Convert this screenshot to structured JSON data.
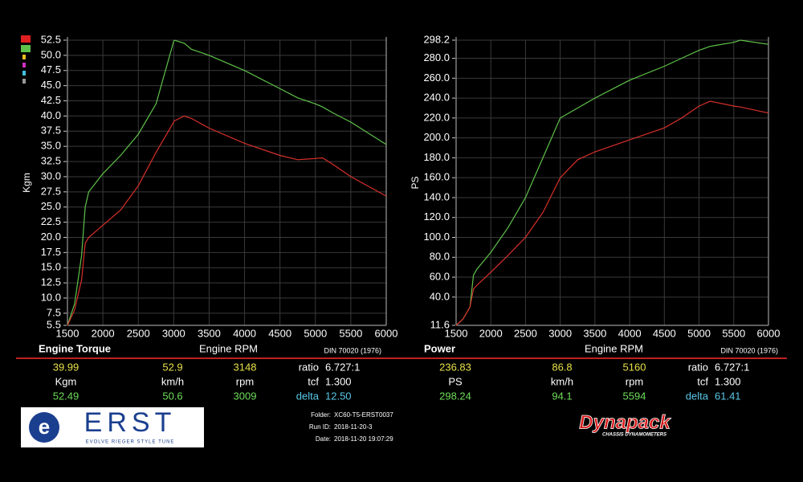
{
  "chart_data": [
    {
      "type": "line",
      "title": "Engine Torque",
      "subtitle": "DIN 70020 (1976)",
      "x_label": "Engine RPM",
      "y_label": "Kgm",
      "x": [
        1500,
        1600,
        1700,
        1750,
        1800,
        2000,
        2250,
        2500,
        2750,
        3000,
        3009,
        3148,
        3250,
        3500,
        4000,
        4500,
        4750,
        5000,
        5100,
        5250,
        5500,
        6000
      ],
      "series": [
        {
          "color": "#5fc24a",
          "values": [
            5.5,
            9,
            17,
            25,
            27.5,
            30.5,
            33.5,
            37,
            42,
            52.3,
            52.49,
            52,
            51,
            50,
            47.5,
            44.5,
            43,
            42,
            41.5,
            40.5,
            39,
            35.3
          ]
        },
        {
          "color": "#d8302a",
          "values": [
            5.5,
            8,
            13,
            19,
            20,
            22,
            24.5,
            28.5,
            34,
            39,
            39.2,
            39.99,
            39.6,
            38,
            35.5,
            33.5,
            32.8,
            33,
            33.1,
            32,
            30,
            26.8
          ]
        }
      ],
      "xlim": [
        1500,
        6000
      ],
      "xticks": [
        1500,
        2000,
        2500,
        3000,
        3500,
        4000,
        4500,
        5000,
        5500,
        6000
      ],
      "ylim": [
        5.5,
        52.5
      ],
      "yticks": [
        5.5,
        7.5,
        {
          "value": 10,
          "label": "10.0"
        },
        12.5,
        {
          "value": 15,
          "label": "15.0"
        },
        17.5,
        {
          "value": 20,
          "label": "20.0"
        },
        22.5,
        {
          "value": 25,
          "label": "25.0"
        },
        27.5,
        {
          "value": 30,
          "label": "30.0"
        },
        32.5,
        {
          "value": 35,
          "label": "35.0"
        },
        37.5,
        {
          "value": 40,
          "label": "40.0"
        },
        42.5,
        {
          "value": 45,
          "label": "45.0"
        },
        47.5,
        {
          "value": 50,
          "label": "50.0"
        },
        52.5
      ],
      "grid": true
    },
    {
      "type": "line",
      "title": "Power",
      "subtitle": "DIN 70020 (1976)",
      "x_label": "Engine RPM",
      "y_label": "PS",
      "x": [
        1500,
        1600,
        1700,
        1750,
        1800,
        2000,
        2250,
        2500,
        2750,
        3000,
        3250,
        3500,
        4000,
        4500,
        4750,
        5000,
        5160,
        5500,
        5594,
        6000
      ],
      "series": [
        {
          "color": "#5fc24a",
          "values": [
            11.6,
            18,
            30,
            62,
            68,
            85,
            110,
            140,
            180,
            220,
            230,
            240,
            258,
            272,
            280,
            288,
            292,
            296,
            298.24,
            294
          ]
        },
        {
          "color": "#d8302a",
          "values": [
            11.6,
            18,
            30,
            48,
            52,
            65,
            82,
            100,
            125,
            160,
            178,
            186,
            198,
            210,
            220,
            232,
            236.83,
            232,
            231,
            225
          ]
        }
      ],
      "xlim": [
        1500,
        6000
      ],
      "xticks": [
        1500,
        2000,
        2500,
        3000,
        3500,
        4000,
        4500,
        5000,
        5500,
        6000
      ],
      "ylim": [
        11.6,
        298.2
      ],
      "yticks": [
        11.6,
        {
          "value": 40,
          "label": "40.0"
        },
        {
          "value": 60,
          "label": "60.0"
        },
        {
          "value": 80,
          "label": "80.0"
        },
        {
          "value": 100,
          "label": "100.0"
        },
        {
          "value": 120,
          "label": "120.0"
        },
        {
          "value": 140,
          "label": "140.0"
        },
        {
          "value": 160,
          "label": "160.0"
        },
        {
          "value": 180,
          "label": "180.0"
        },
        {
          "value": 200,
          "label": "200.0"
        },
        {
          "value": 220,
          "label": "220.0"
        },
        {
          "value": 240,
          "label": "240.0"
        },
        {
          "value": 260,
          "label": "260.0"
        },
        {
          "value": 280,
          "label": "280.0"
        },
        298.2
      ],
      "grid": true
    }
  ],
  "tables": [
    {
      "rows": [
        [
          "39.99",
          "52.9",
          "3148",
          "ratio",
          "6.727:1"
        ],
        [
          "Kgm",
          "km/h",
          "rpm",
          "tcf",
          "1.300"
        ],
        [
          "52.49",
          "50.6",
          "3009",
          "delta",
          "12.50"
        ]
      ]
    },
    {
      "rows": [
        [
          "236.83",
          "86.8",
          "5160",
          "ratio",
          "6.727:1"
        ],
        [
          "PS",
          "km/h",
          "rpm",
          "tcf",
          "1.300"
        ],
        [
          "298.24",
          "94.1",
          "5594",
          "delta",
          "61.41"
        ]
      ]
    }
  ],
  "info": [
    "Folder:",
    "XC60-T5-ERST0037",
    "Run ID:",
    "2018-11-20-3",
    "Date:",
    "2018-11-20 19:07:29"
  ],
  "logos": {
    "erst": "ERST",
    "erst_tagline": "EVOLVE RIEGER STYLE TUNE",
    "dynapack": "Dynapack",
    "dynapack_tagline": "CHASSIS DYNAMOMETERS"
  }
}
